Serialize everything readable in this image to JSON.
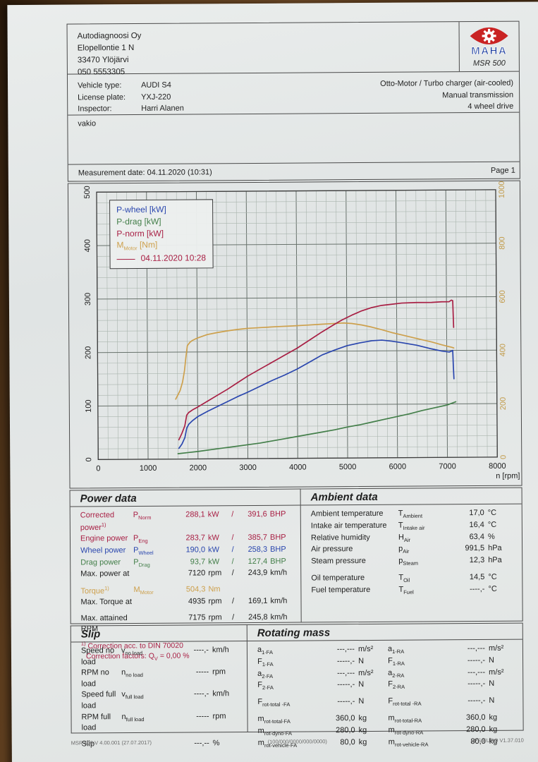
{
  "colors": {
    "crimson": "#a81f44",
    "blue": "#2a46ae",
    "green": "#447f4a",
    "orange": "#cda04c",
    "black": "#1e1e1e",
    "logo_red": "#c92323",
    "logo_blue": "#1d3ea0"
  },
  "header": {
    "address_lines": [
      "Autodiagnoosi Oy",
      "Elopellontie 1 N",
      "33470 Ylöjärvi",
      "050 5553305"
    ],
    "logo_text": "MAHA",
    "logo_model": "MSR 500"
  },
  "vehicle": {
    "rows": [
      {
        "label": "Vehicle type:",
        "value": "AUDI S4"
      },
      {
        "label": "License plate:",
        "value": "YXJ-220"
      },
      {
        "label": "Inspector:",
        "value": "Harri Alanen"
      }
    ],
    "right_lines": [
      "Otto-Motor / Turbo charger (air-cooled)",
      "Manual transmission",
      "4 wheel drive"
    ]
  },
  "comment": "vakio",
  "measurement": {
    "label": "Measurement date: 04.11.2020 (10:31)",
    "page": "Page 1"
  },
  "chart_data": {
    "type": "line",
    "xlabel": "n [rpm]",
    "x_range": [
      0,
      8000
    ],
    "x_ticks": [
      0,
      1000,
      2000,
      3000,
      4000,
      5000,
      6000,
      7000,
      8000
    ],
    "y_left": {
      "range": [
        0,
        500
      ],
      "ticks": [
        0,
        100,
        200,
        300,
        400,
        500
      ],
      "color": "#1e1e1e"
    },
    "y_right": {
      "range": [
        0,
        1000
      ],
      "ticks": [
        0,
        200,
        400,
        600,
        800,
        1000
      ],
      "color": "#c29b4a"
    },
    "grid": {
      "x_minor_step": 200,
      "y_minor_step": 20
    },
    "legend": [
      {
        "text": "P-wheel [kW]",
        "color": "blue"
      },
      {
        "text": "P-drag [kW]",
        "color": "green"
      },
      {
        "text": "P-norm [kW]",
        "color": "crimson"
      },
      {
        "sym": "M",
        "sub": "Motor",
        "post": " [Nm]",
        "color": "orange"
      },
      {
        "swatch": true,
        "text": "04.11.2020 10:28",
        "color": "crimson"
      }
    ],
    "series": [
      {
        "name": "P-drag [kW]",
        "axis": "left",
        "color": "green",
        "points": [
          [
            1600,
            10
          ],
          [
            1800,
            12
          ],
          [
            2000,
            14
          ],
          [
            2250,
            17
          ],
          [
            2500,
            20
          ],
          [
            2750,
            23
          ],
          [
            3000,
            26
          ],
          [
            3250,
            29
          ],
          [
            3500,
            33
          ],
          [
            3750,
            37
          ],
          [
            4000,
            41
          ],
          [
            4250,
            45
          ],
          [
            4500,
            49
          ],
          [
            4750,
            53
          ],
          [
            5000,
            58
          ],
          [
            5250,
            62
          ],
          [
            5500,
            67
          ],
          [
            5750,
            72
          ],
          [
            6000,
            77
          ],
          [
            6250,
            82
          ],
          [
            6500,
            88
          ],
          [
            6750,
            93
          ],
          [
            7000,
            98
          ],
          [
            7175,
            104
          ]
        ]
      },
      {
        "name": "P-wheel [kW]",
        "axis": "left",
        "color": "blue",
        "points": [
          [
            1620,
            20
          ],
          [
            1680,
            28
          ],
          [
            1740,
            40
          ],
          [
            1780,
            58
          ],
          [
            1820,
            65
          ],
          [
            1900,
            72
          ],
          [
            2000,
            79
          ],
          [
            2200,
            89
          ],
          [
            2400,
            98
          ],
          [
            2600,
            107
          ],
          [
            2800,
            116
          ],
          [
            3000,
            124
          ],
          [
            3250,
            135
          ],
          [
            3500,
            146
          ],
          [
            3750,
            156
          ],
          [
            4000,
            167
          ],
          [
            4250,
            180
          ],
          [
            4500,
            193
          ],
          [
            4750,
            202
          ],
          [
            5000,
            210
          ],
          [
            5250,
            215
          ],
          [
            5500,
            219
          ],
          [
            5700,
            220
          ],
          [
            5900,
            218
          ],
          [
            6100,
            215
          ],
          [
            6400,
            210
          ],
          [
            6700,
            203
          ],
          [
            6900,
            199
          ],
          [
            7050,
            197
          ],
          [
            7100,
            199
          ],
          [
            7120,
            200
          ],
          [
            7130,
            172
          ],
          [
            7140,
            147
          ]
        ]
      },
      {
        "name": "M-Motor [Nm]",
        "axis": "right",
        "color": "orange",
        "points": [
          [
            1560,
            224
          ],
          [
            1600,
            238
          ],
          [
            1650,
            256
          ],
          [
            1700,
            288
          ],
          [
            1740,
            330
          ],
          [
            1770,
            380
          ],
          [
            1800,
            424
          ],
          [
            1850,
            436
          ],
          [
            1900,
            443
          ],
          [
            2000,
            452
          ],
          [
            2200,
            465
          ],
          [
            2400,
            472
          ],
          [
            2600,
            478
          ],
          [
            2800,
            483
          ],
          [
            3000,
            487
          ],
          [
            3300,
            490
          ],
          [
            3600,
            493
          ],
          [
            3900,
            495
          ],
          [
            4200,
            498
          ],
          [
            4500,
            501
          ],
          [
            4700,
            503
          ],
          [
            4935,
            505
          ],
          [
            5100,
            503
          ],
          [
            5300,
            497
          ],
          [
            5500,
            489
          ],
          [
            5700,
            479
          ],
          [
            5900,
            468
          ],
          [
            6100,
            459
          ],
          [
            6300,
            450
          ],
          [
            6500,
            441
          ],
          [
            6700,
            432
          ],
          [
            6900,
            421
          ],
          [
            7050,
            414
          ],
          [
            7100,
            412
          ],
          [
            7140,
            409
          ]
        ]
      },
      {
        "name": "P-norm [kW]",
        "axis": "left",
        "color": "crimson",
        "points": [
          [
            1620,
            36
          ],
          [
            1680,
            48
          ],
          [
            1740,
            62
          ],
          [
            1780,
            82
          ],
          [
            1820,
            87
          ],
          [
            1900,
            92
          ],
          [
            2000,
            97
          ],
          [
            2200,
            108
          ],
          [
            2400,
            119
          ],
          [
            2600,
            130
          ],
          [
            2800,
            142
          ],
          [
            3000,
            154
          ],
          [
            3250,
            167
          ],
          [
            3500,
            180
          ],
          [
            3750,
            193
          ],
          [
            4000,
            206
          ],
          [
            4250,
            221
          ],
          [
            4500,
            236
          ],
          [
            4750,
            250
          ],
          [
            4900,
            258
          ],
          [
            5100,
            267
          ],
          [
            5300,
            275
          ],
          [
            5500,
            281
          ],
          [
            5700,
            285
          ],
          [
            5900,
            287
          ],
          [
            6100,
            289
          ],
          [
            6400,
            290
          ],
          [
            6700,
            290
          ],
          [
            6900,
            291
          ],
          [
            7050,
            291
          ],
          [
            7100,
            294
          ],
          [
            7125,
            293
          ],
          [
            7140,
            243
          ]
        ]
      }
    ]
  },
  "power_data": {
    "title": "Power data",
    "rows": [
      {
        "label": "Corrected power",
        "label_sup": "1)",
        "sym": "P",
        "sub": "Norm",
        "v1": "288,1",
        "u1": "kW",
        "slash": "/",
        "v2": "391,6",
        "u2": "BHP",
        "color": "crimson"
      },
      {
        "label": "Engine power",
        "sym": "P",
        "sub": "Eng",
        "v1": "283,7",
        "u1": "kW",
        "slash": "/",
        "v2": "385,7",
        "u2": "BHP",
        "color": "crimson"
      },
      {
        "label": "Wheel power",
        "sym": "P",
        "sub": "Wheel",
        "v1": "190,0",
        "u1": "kW",
        "slash": "/",
        "v2": "258,3",
        "u2": "BHP",
        "color": "blue"
      },
      {
        "label": "Drag power",
        "sym": "P",
        "sub": "Drag",
        "v1": "93,7",
        "u1": "kW",
        "slash": "/",
        "v2": "127,4",
        "u2": "BHP",
        "color": "green"
      },
      {
        "label": "Max. power at",
        "sym": "",
        "sub": "",
        "v1": "7120",
        "u1": "rpm",
        "slash": "/",
        "v2": "243,9",
        "u2": "km/h",
        "color": "black"
      },
      {
        "label": "Torque",
        "label_sup": "1)",
        "sym": "M",
        "sub": "Motor",
        "v1": "504,3",
        "u1": "Nm",
        "slash": "",
        "v2": "",
        "u2": "",
        "color": "orange",
        "gap": true
      },
      {
        "label": "Max. Torque at",
        "sym": "",
        "sub": "",
        "v1": "4935",
        "u1": "rpm",
        "slash": "/",
        "v2": "169,1",
        "u2": "km/h",
        "color": "black"
      },
      {
        "label": "Max. attained RPM",
        "sym": "",
        "sub": "",
        "v1": "7175",
        "u1": "rpm",
        "slash": "/",
        "v2": "245,8",
        "u2": "km/h",
        "color": "black",
        "gap": true
      }
    ],
    "footnote1_sup": "1)",
    "footnote1": " Correction acc. to DIN 70020",
    "footnote2_pre": "Correction factors: Q",
    "footnote2_sub": "V",
    "footnote2_post": " =   0,00 %"
  },
  "ambient_data": {
    "title": "Ambient data",
    "rows": [
      {
        "label": "Ambient temperature",
        "sym": "T",
        "sub": "Ambient",
        "v": "17,0",
        "u": "°C"
      },
      {
        "label": "Intake air temperature",
        "sym": "T",
        "sub": "Intake air",
        "v": "16,4",
        "u": "°C"
      },
      {
        "label": "Relative humidity",
        "sym": "H",
        "sub": "Air",
        "v": "63,4",
        "u": "%"
      },
      {
        "label": "Air pressure",
        "sym": "p",
        "sub": "Air",
        "v": "991,5",
        "u": "hPa"
      },
      {
        "label": "Steam pressure",
        "sym": "p",
        "sub": "Steam",
        "v": "12,3",
        "u": "hPa"
      },
      {
        "label": "Oil temperature",
        "sym": "T",
        "sub": "Oil",
        "v": "14,5",
        "u": "°C",
        "gap": true
      },
      {
        "label": "Fuel temperature",
        "sym": "T",
        "sub": "Fuel",
        "v": "----,-",
        "u": "°C"
      }
    ]
  },
  "slip": {
    "title": "Slip",
    "rows": [
      {
        "label": "Speed no load",
        "sym": "v",
        "sub": "no load",
        "v": "----,-",
        "u": "km/h"
      },
      {
        "label": "RPM no load",
        "sym": "n",
        "sub": "no load",
        "v": "-----",
        "u": "rpm"
      },
      {
        "label": "Speed full load",
        "sym": "v",
        "sub": "full load",
        "v": "----,-",
        "u": "km/h"
      },
      {
        "label": "RPM full load",
        "sym": "n",
        "sub": "full load",
        "v": "-----",
        "u": "rpm"
      },
      {
        "label": "Slip",
        "sym": "",
        "sub": "",
        "v": "---,--",
        "u": "%",
        "gap": true
      }
    ]
  },
  "rotating_mass": {
    "title": "Rotating mass",
    "rows": [
      {
        "l": {
          "sym": "a",
          "sub": "1-FA",
          "v": "---,---",
          "u": "m/s²"
        },
        "r": {
          "sym": "a",
          "sub": "1-RA",
          "v": "---,---",
          "u": "m/s²"
        }
      },
      {
        "l": {
          "sym": "F",
          "sub": "1-FA",
          "v": "-----,-",
          "u": "N"
        },
        "r": {
          "sym": "F",
          "sub": "1-RA",
          "v": "-----,-",
          "u": "N"
        }
      },
      {
        "l": {
          "sym": "a",
          "sub": "2-FA",
          "v": "---,---",
          "u": "m/s²"
        },
        "r": {
          "sym": "a",
          "sub": "2-RA",
          "v": "---,---",
          "u": "m/s²"
        }
      },
      {
        "l": {
          "sym": "F",
          "sub": "2-FA",
          "v": "-----,-",
          "u": "N"
        },
        "r": {
          "sym": "F",
          "sub": "2-RA",
          "v": "-----,-",
          "u": "N"
        }
      },
      {
        "gap": true,
        "l": {
          "sym": "F",
          "sub": "rot-total -FA",
          "v": "-----,-",
          "u": "N"
        },
        "r": {
          "sym": "F",
          "sub": "rot-total -RA",
          "v": "-----,-",
          "u": "N"
        }
      },
      {
        "gap": true,
        "l": {
          "sym": "m",
          "sub": "rot-total-FA",
          "v": "360,0",
          "u": "kg"
        },
        "r": {
          "sym": "m",
          "sub": "rot-total-RA",
          "v": "360,0",
          "u": "kg"
        }
      },
      {
        "l": {
          "sym": "m",
          "sub": "rot-dyno-FA",
          "v": "280,0",
          "u": "kg"
        },
        "r": {
          "sym": "m",
          "sub": "rot-dyno-RA",
          "v": "280,0",
          "u": "kg"
        }
      },
      {
        "l": {
          "sym": "m",
          "sub": "rot-vehicle-FA",
          "v": "80,0",
          "u": "kg"
        },
        "r": {
          "sym": "m",
          "sub": "rot-vehicle-RA",
          "v": "80,0",
          "u": "kg"
        }
      }
    ]
  },
  "footer": {
    "left": "MSR 500 V 4.00.001 (27.07.2017)",
    "center": "(100/000/0000/000/0000)",
    "right": "LPS-EURO V1.37.010"
  }
}
